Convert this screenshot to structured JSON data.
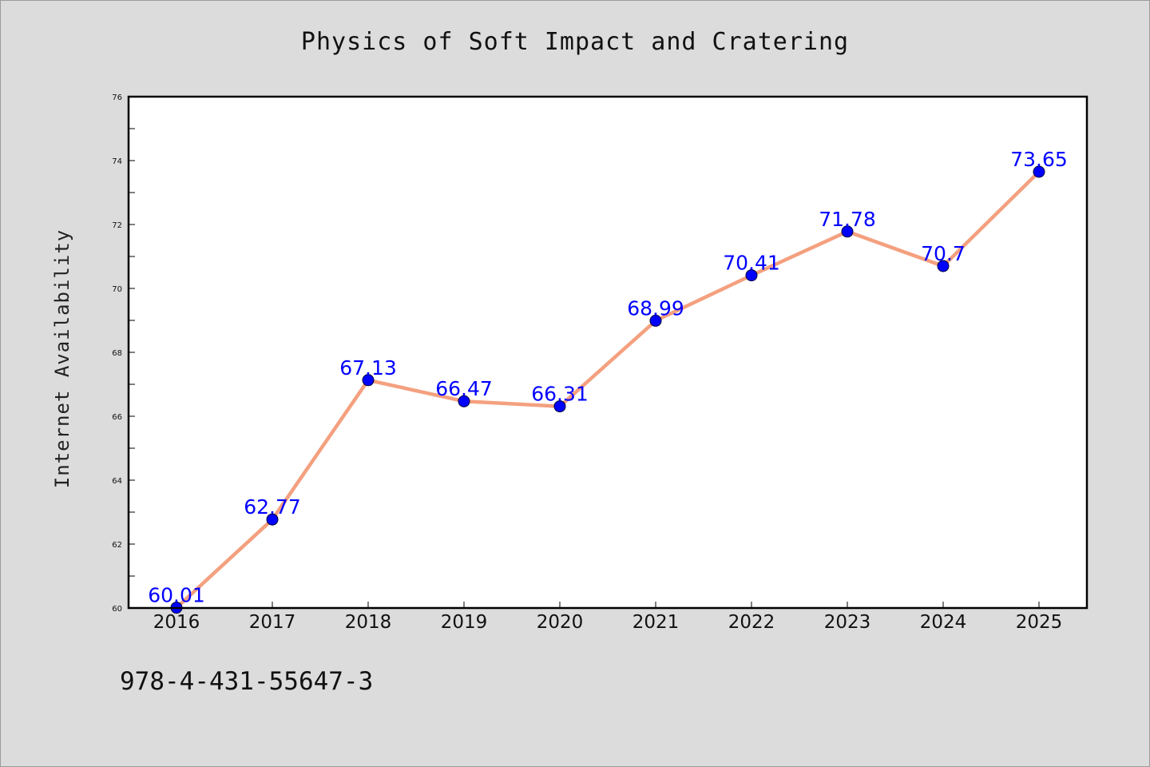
{
  "chart_data": {
    "type": "line",
    "title": "Physics of Soft Impact and Cratering",
    "xlabel": "",
    "ylabel": "Internet Availability",
    "categories": [
      "2016",
      "2017",
      "2018",
      "2019",
      "2020",
      "2021",
      "2022",
      "2023",
      "2024",
      "2025"
    ],
    "series": [
      {
        "values": [
          60.01,
          62.77,
          67.13,
          66.47,
          66.31,
          68.99,
          70.41,
          71.78,
          70.7,
          73.65
        ],
        "data_labels": [
          "60.01",
          "62.77",
          "67.13",
          "66.47",
          "66.31",
          "68.99",
          "70.41",
          "71.78",
          "70.7",
          "73.65"
        ]
      }
    ],
    "ylim": [
      60,
      76
    ],
    "yticks": [
      "60",
      "62",
      "64",
      "66",
      "68",
      "70",
      "72",
      "74",
      "76"
    ],
    "grid": false,
    "line_color": "#f4a07f",
    "marker_color": "#0000ff",
    "label_color": "#0000ff"
  },
  "footer": {
    "code": "978-4-431-55647-3"
  }
}
